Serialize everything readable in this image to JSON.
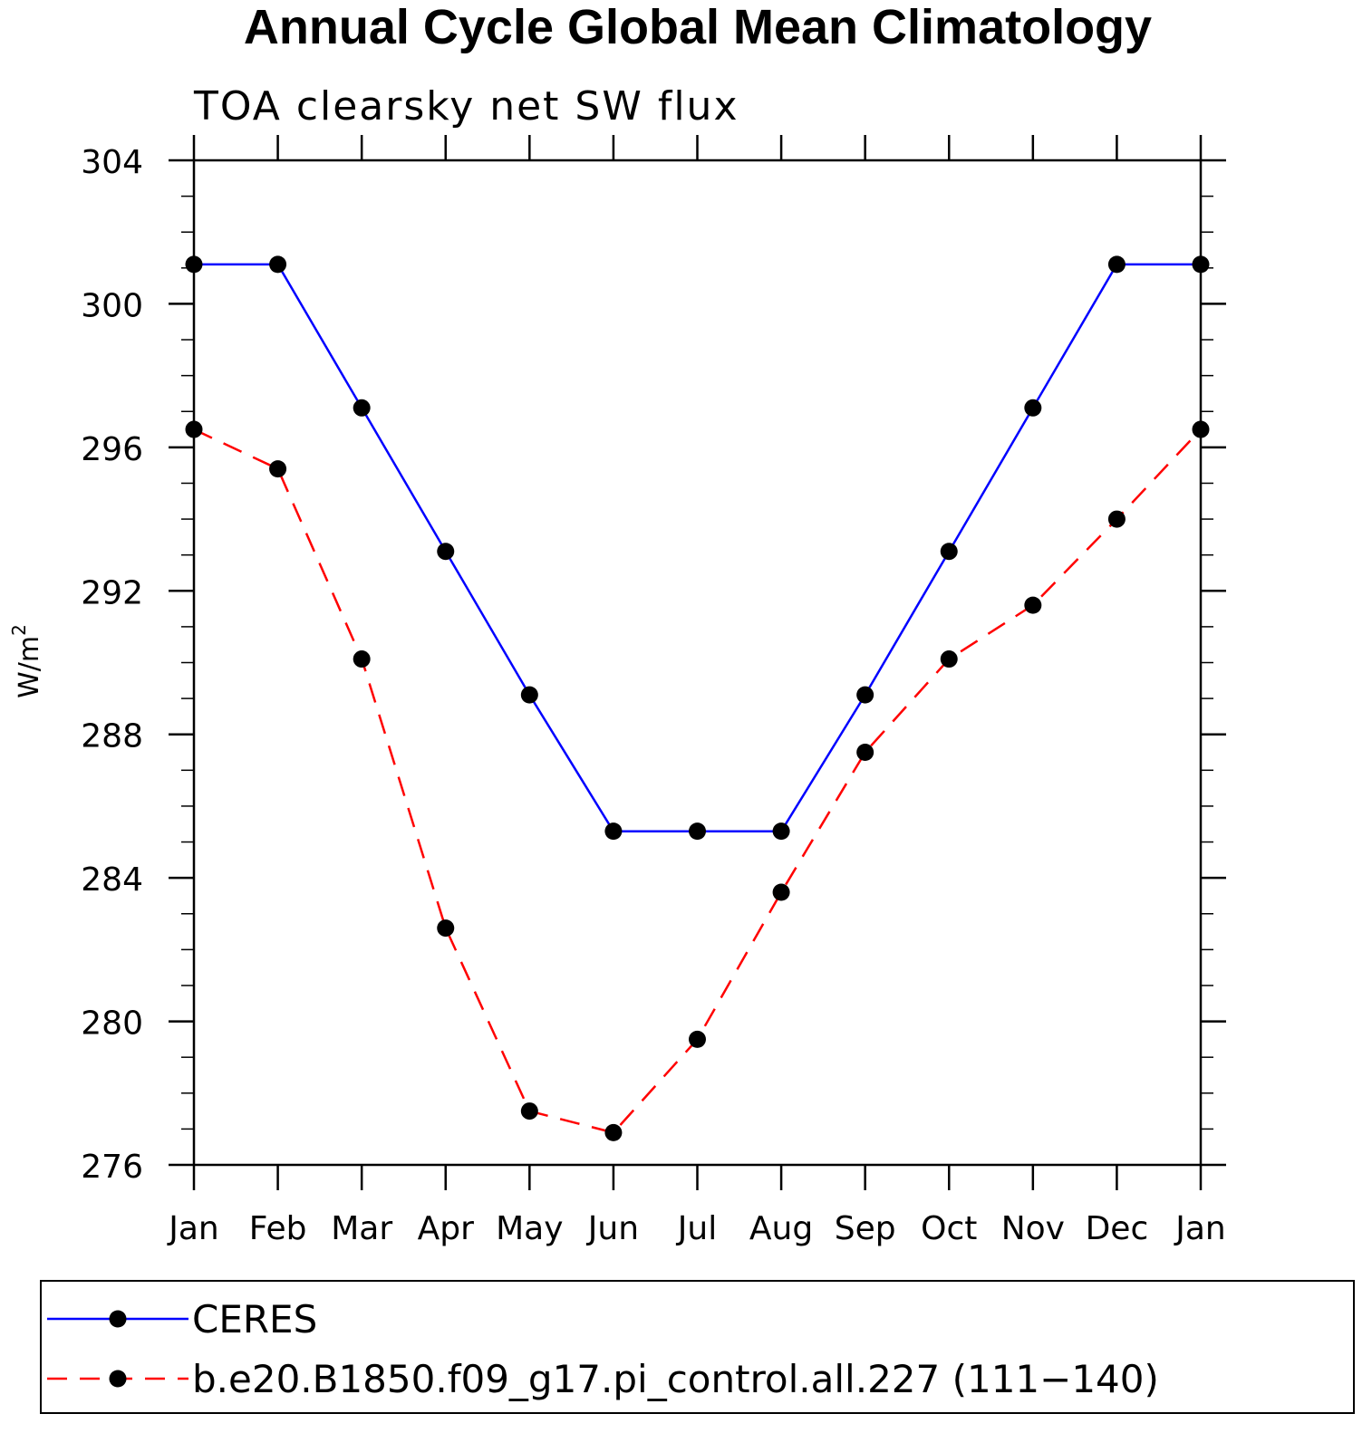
{
  "chart_data": {
    "type": "line",
    "title": "Annual Cycle Global Mean Climatology",
    "subtitle": "TOA clearsky net SW flux",
    "ylabel_base": "W/m",
    "ylabel_sup": "2",
    "xlabel": "",
    "categories": [
      "Jan",
      "Feb",
      "Mar",
      "Apr",
      "May",
      "Jun",
      "Jul",
      "Aug",
      "Sep",
      "Oct",
      "Nov",
      "Dec",
      "Jan"
    ],
    "ylim": [
      276,
      304
    ],
    "yticks": [
      276,
      280,
      284,
      288,
      292,
      296,
      300,
      304
    ],
    "grid": false,
    "legend_position": "bottom",
    "series": [
      {
        "name": "CERES",
        "color": "#0000ff",
        "dash": "solid",
        "values": [
          301.1,
          301.1,
          297.1,
          293.1,
          289.1,
          285.3,
          285.3,
          285.3,
          289.1,
          293.1,
          297.1,
          301.1,
          301.1
        ]
      },
      {
        "name": "b.e20.B1850.f09_g17.pi_control.all.227 (111−140)",
        "color": "#ff0000",
        "dash": "dashed",
        "values": [
          296.5,
          295.4,
          290.1,
          282.6,
          277.5,
          276.9,
          279.5,
          283.6,
          287.5,
          290.1,
          291.6,
          294.0,
          296.5
        ]
      }
    ]
  }
}
